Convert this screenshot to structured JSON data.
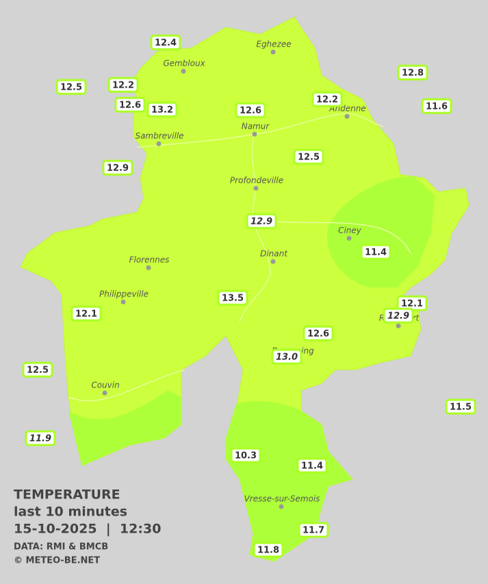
{
  "legend": {
    "title": "TEMPERATURE",
    "period": "last 10 minutes",
    "timestamp": "15-10-2025  |  12:30",
    "source": "DATA: RMI & BMCB",
    "credit": "© METEO-BE.NET"
  },
  "places": [
    "Eghezee",
    "Gembloux",
    "Andenne",
    "Namur",
    "Sambreville",
    "Profondeville",
    "Ciney",
    "Dinant",
    "Florennes",
    "Philippeville",
    "Rochefort",
    "Beauraing",
    "Couvin",
    "Vresse-sur-Semois"
  ],
  "stations": [
    {
      "label": "12.4",
      "italic": false
    },
    {
      "label": "12.5",
      "italic": false
    },
    {
      "label": "12.2",
      "italic": false
    },
    {
      "label": "12.6",
      "italic": false
    },
    {
      "label": "13.2",
      "italic": false
    },
    {
      "label": "12.6",
      "italic": false
    },
    {
      "label": "12.2",
      "italic": false
    },
    {
      "label": "12.8",
      "italic": false
    },
    {
      "label": "11.6",
      "italic": false
    },
    {
      "label": "12.5",
      "italic": false
    },
    {
      "label": "12.9",
      "italic": false
    },
    {
      "label": "12.9",
      "italic": true
    },
    {
      "label": "11.4",
      "italic": false
    },
    {
      "label": "13.5",
      "italic": false
    },
    {
      "label": "12.1",
      "italic": false
    },
    {
      "label": "12.9",
      "italic": true
    },
    {
      "label": "12.1",
      "italic": false
    },
    {
      "label": "12.6",
      "italic": false
    },
    {
      "label": "13.0",
      "italic": true
    },
    {
      "label": "12.5",
      "italic": false
    },
    {
      "label": "11.5",
      "italic": false
    },
    {
      "label": "11.9",
      "italic": true
    },
    {
      "label": "10.3",
      "italic": false
    },
    {
      "label": "11.4",
      "italic": false
    },
    {
      "label": "11.7",
      "italic": false
    },
    {
      "label": "11.8",
      "italic": false
    }
  ]
}
